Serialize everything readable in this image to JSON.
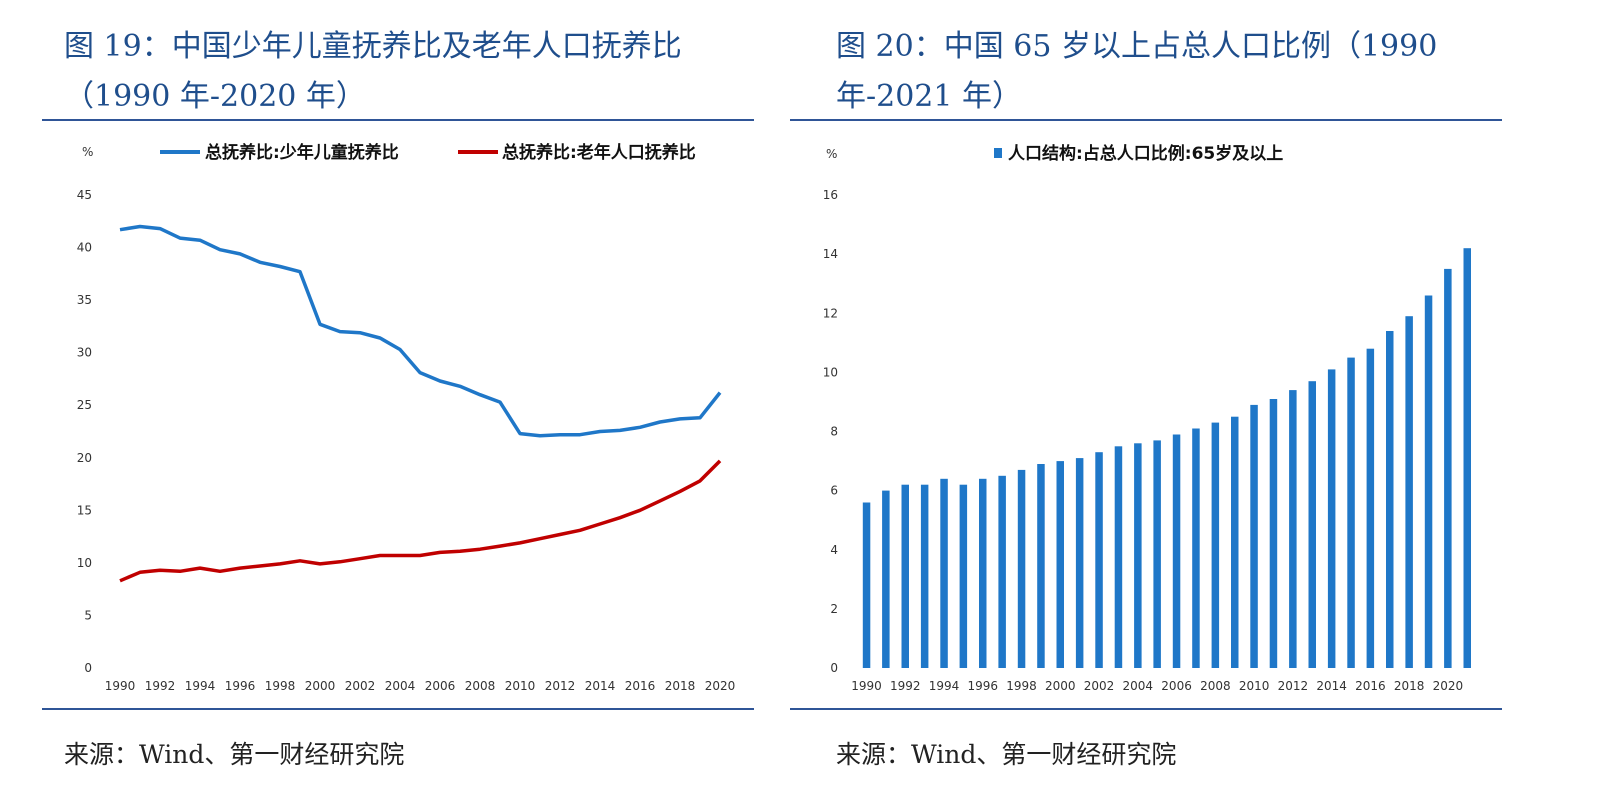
{
  "left": {
    "title": "图 19：中国少年儿童抚养比及老年人口抚养比（1990 年-2020 年）",
    "source": "来源：Wind、第一财经研究院",
    "unit": "%"
  },
  "right": {
    "title": "图 20：中国 65 岁以上占总人口比例（1990 年-2021 年）",
    "source": "来源：Wind、第一财经研究院",
    "unit": "%"
  },
  "colors": {
    "blue": "#1f77c8",
    "red": "#c00000",
    "title_blue": "#1f4e8c"
  },
  "chart_data": [
    {
      "type": "line",
      "title": "",
      "xlabel": "",
      "ylabel": "%",
      "ylim": [
        0,
        45
      ],
      "yticks": [
        0,
        5,
        10,
        15,
        20,
        25,
        30,
        35,
        40,
        45
      ],
      "x": [
        1990,
        1991,
        1992,
        1993,
        1994,
        1995,
        1996,
        1997,
        1998,
        1999,
        2000,
        2001,
        2002,
        2003,
        2004,
        2005,
        2006,
        2007,
        2008,
        2009,
        2010,
        2011,
        2012,
        2013,
        2014,
        2015,
        2016,
        2017,
        2018,
        2019,
        2020
      ],
      "xticks": [
        "1990",
        "1992",
        "1994",
        "1996",
        "1998",
        "2000",
        "2002",
        "2004",
        "2006",
        "2008",
        "2010",
        "2012",
        "2014",
        "2016",
        "2018",
        "2020"
      ],
      "legend": "top",
      "grid": false,
      "series": [
        {
          "name": "总抚养比:少年儿童抚养比",
          "color": "#1f77c8",
          "values": [
            41.7,
            42.0,
            41.8,
            40.9,
            40.7,
            39.8,
            39.4,
            38.6,
            38.2,
            37.7,
            32.7,
            32.0,
            31.9,
            31.4,
            30.3,
            28.1,
            27.3,
            26.8,
            26.0,
            25.3,
            22.3,
            22.1,
            22.2,
            22.2,
            22.5,
            22.6,
            22.9,
            23.4,
            23.7,
            23.8,
            26.2
          ]
        },
        {
          "name": "总抚养比:老年人口抚养比",
          "color": "#c00000",
          "values": [
            8.3,
            9.1,
            9.3,
            9.2,
            9.5,
            9.2,
            9.5,
            9.7,
            9.9,
            10.2,
            9.9,
            10.1,
            10.4,
            10.7,
            10.7,
            10.7,
            11.0,
            11.1,
            11.3,
            11.6,
            11.9,
            12.3,
            12.7,
            13.1,
            13.7,
            14.3,
            15.0,
            15.9,
            16.8,
            17.8,
            19.7
          ]
        }
      ]
    },
    {
      "type": "bar",
      "title": "",
      "xlabel": "",
      "ylabel": "%",
      "ylim": [
        0,
        16
      ],
      "yticks": [
        0,
        2,
        4,
        6,
        8,
        10,
        12,
        14,
        16
      ],
      "categories": [
        1990,
        1991,
        1992,
        1993,
        1994,
        1995,
        1996,
        1997,
        1998,
        1999,
        2000,
        2001,
        2002,
        2003,
        2004,
        2005,
        2006,
        2007,
        2008,
        2009,
        2010,
        2011,
        2012,
        2013,
        2014,
        2015,
        2016,
        2017,
        2018,
        2019,
        2020,
        2021
      ],
      "xticks": [
        "1990",
        "1992",
        "1994",
        "1996",
        "1998",
        "2000",
        "2002",
        "2004",
        "2006",
        "2008",
        "2010",
        "2012",
        "2014",
        "2016",
        "2018",
        "2020"
      ],
      "legend": "top",
      "grid": false,
      "series": [
        {
          "name": "人口结构:占总人口比例:65岁及以上",
          "color": "#1f77c8",
          "values": [
            5.6,
            6.0,
            6.2,
            6.2,
            6.4,
            6.2,
            6.4,
            6.5,
            6.7,
            6.9,
            7.0,
            7.1,
            7.3,
            7.5,
            7.6,
            7.7,
            7.9,
            8.1,
            8.3,
            8.5,
            8.9,
            9.1,
            9.4,
            9.7,
            10.1,
            10.5,
            10.8,
            11.4,
            11.9,
            12.6,
            13.5,
            14.2
          ]
        }
      ]
    }
  ]
}
